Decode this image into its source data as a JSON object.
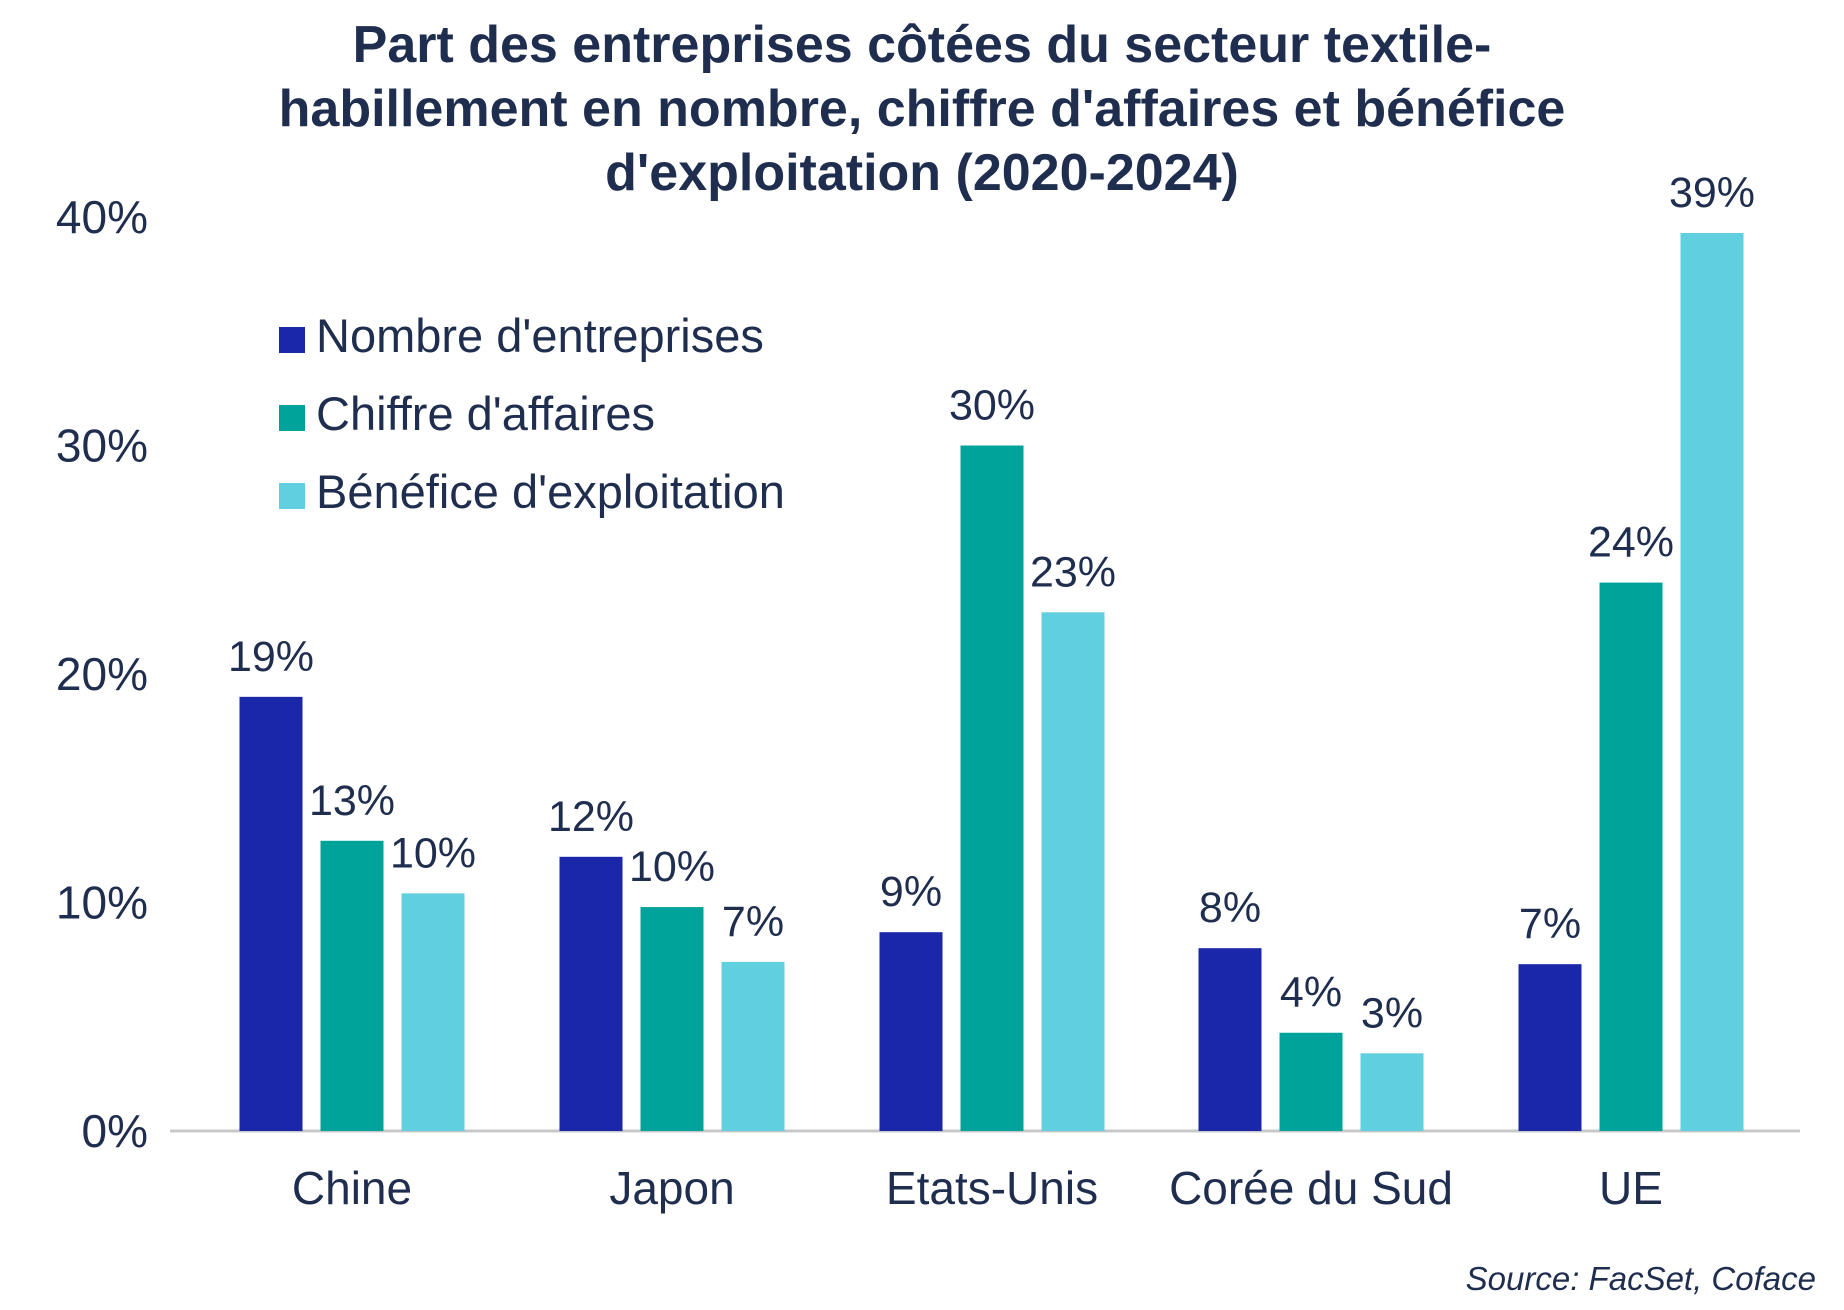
{
  "colors": {
    "text": "#1f2d4e",
    "axis": "#c8c8c8",
    "series": [
      "#1a27a8",
      "#00a39a",
      "#60d0e0"
    ]
  },
  "chart_data": {
    "type": "bar",
    "title_lines": [
      "Part des entreprises côtées du secteur textile-",
      "habillement en nombre, chiffre d'affaires et bénéfice",
      "d'exploitation (2020-2024)"
    ],
    "categories": [
      "Chine",
      "Japon",
      "Etats-Unis",
      "Corée du Sud",
      "UE"
    ],
    "series": [
      {
        "name": "Nombre d'entreprises",
        "values": [
          19,
          12,
          8.7,
          8,
          7.3
        ],
        "labels": [
          "19%",
          "12%",
          "9%",
          "8%",
          "7%"
        ]
      },
      {
        "name": "Chiffre d'affaires",
        "values": [
          12.7,
          9.8,
          30,
          4.3,
          24
        ],
        "labels": [
          "13%",
          "10%",
          "30%",
          "4%",
          "24%"
        ]
      },
      {
        "name": "Bénéfice d'exploitation",
        "values": [
          10.4,
          7.4,
          22.7,
          3.4,
          39.3
        ],
        "labels": [
          "10%",
          "7%",
          "23%",
          "3%",
          "39%"
        ]
      }
    ],
    "ylim": [
      0,
      40
    ],
    "yticks": [
      {
        "value": 0,
        "label": "0%"
      },
      {
        "value": 10,
        "label": "10%"
      },
      {
        "value": 20,
        "label": "20%"
      },
      {
        "value": 30,
        "label": "30%"
      },
      {
        "value": 40,
        "label": "40%"
      }
    ],
    "xlabel": "",
    "ylabel": "",
    "grid": false,
    "legend_position": "top-left",
    "source": "Source: FacSet, Coface"
  }
}
